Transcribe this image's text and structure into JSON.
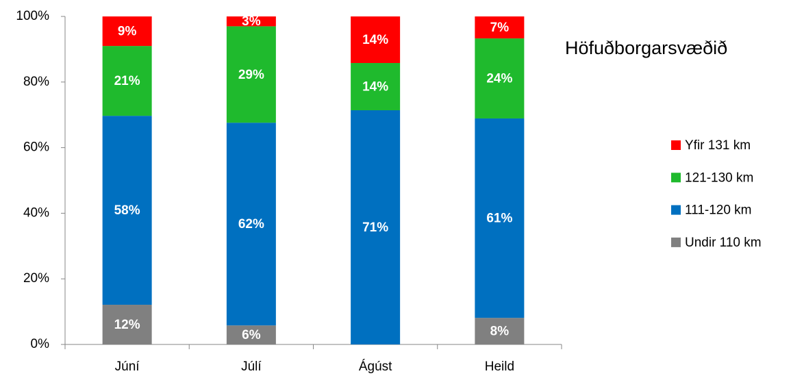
{
  "chart_data": {
    "type": "stacked_bar",
    "title": "Höfuðborgarsvæðið",
    "categories": [
      "Júní",
      "Júlí",
      "Ágúst",
      "Heild"
    ],
    "series": [
      {
        "name": "Undir 110 km",
        "color": "#808080",
        "values": [
          12.1,
          5.8,
          0,
          8.1
        ],
        "value_labels": [
          "12%",
          "6%",
          null,
          "8%"
        ]
      },
      {
        "name": "111-120 km",
        "color": "#0070c0",
        "values": [
          57.6,
          61.8,
          71.4,
          60.8
        ],
        "value_labels": [
          "58%",
          "62%",
          "71%",
          "61%"
        ]
      },
      {
        "name": "121-130 km",
        "color": "#1fba2d",
        "values": [
          21.3,
          29.4,
          14.4,
          24.4
        ],
        "value_labels": [
          "21%",
          "29%",
          "14%",
          "24%"
        ]
      },
      {
        "name": "Yfir 131 km",
        "color": "#ff0000",
        "values": [
          9.0,
          3.0,
          14.2,
          6.7
        ],
        "value_labels": [
          "9%",
          "3%",
          "14%",
          "7%"
        ]
      }
    ],
    "ylim": [
      0,
      100
    ],
    "yticks": [
      {
        "value": 0,
        "label": "0%"
      },
      {
        "value": 20,
        "label": "20%"
      },
      {
        "value": 40,
        "label": "40%"
      },
      {
        "value": 60,
        "label": "60%"
      },
      {
        "value": 80,
        "label": "80%"
      },
      {
        "value": 100,
        "label": "100%"
      }
    ],
    "legend": "right"
  }
}
